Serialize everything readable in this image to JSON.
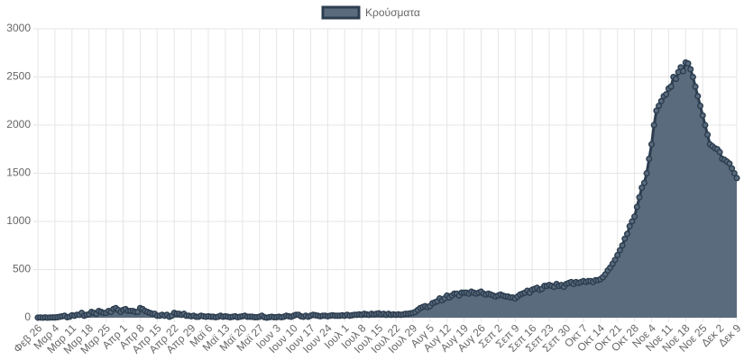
{
  "chart_data": {
    "type": "line",
    "series": [
      {
        "name": "Κρούσματα",
        "color": "#2c3e50",
        "fill_color": "#5b6b7e",
        "values": [
          1,
          2,
          0,
          3,
          0,
          2,
          3,
          3,
          5,
          10,
          15,
          20,
          5,
          10,
          25,
          20,
          30,
          30,
          50,
          20,
          30,
          35,
          60,
          50,
          40,
          70,
          60,
          50,
          50,
          70,
          60,
          90,
          100,
          80,
          60,
          80,
          90,
          70,
          70,
          70,
          60,
          60,
          100,
          90,
          70,
          60,
          50,
          40,
          40,
          20,
          20,
          30,
          20,
          30,
          10,
          20,
          50,
          40,
          40,
          30,
          40,
          20,
          20,
          15,
          20,
          10,
          10,
          20,
          15,
          10,
          15,
          10,
          10,
          5,
          10,
          20,
          10,
          15,
          10,
          5,
          10,
          15,
          5,
          10,
          15,
          20,
          10,
          10,
          10,
          5,
          5,
          10,
          20,
          5,
          0,
          5,
          10,
          5,
          5,
          10,
          5,
          10,
          20,
          15,
          10,
          20,
          30,
          30,
          15,
          10,
          20,
          10,
          20,
          30,
          25,
          20,
          15,
          20,
          20,
          15,
          20,
          25,
          20,
          20,
          20,
          25,
          20,
          30,
          20,
          25,
          30,
          30,
          35,
          30,
          40,
          35,
          30,
          40,
          35,
          40,
          45,
          35,
          40,
          30,
          40,
          30,
          35,
          30,
          35,
          30,
          35,
          40,
          40,
          45,
          50,
          60,
          80,
          100,
          110,
          120,
          110,
          120,
          150,
          160,
          170,
          200,
          180,
          200,
          230,
          210,
          230,
          250,
          250,
          230,
          260,
          260,
          260,
          250,
          270,
          260,
          250,
          260,
          270,
          250,
          240,
          250,
          240,
          230,
          220,
          230,
          240,
          230,
          220,
          220,
          210,
          210,
          200,
          220,
          240,
          250,
          260,
          280,
          260,
          290,
          300,
          310,
          290,
          300,
          330,
          330,
          340,
          330,
          320,
          350,
          330,
          340,
          320,
          350,
          360,
          370,
          350,
          370,
          360,
          370,
          380,
          370,
          380,
          380,
          370,
          390,
          390,
          400,
          420,
          450,
          490,
          520,
          560,
          600,
          650,
          700,
          750,
          820,
          870,
          950,
          1000,
          1050,
          1150,
          1250,
          1350,
          1400,
          1500,
          1650,
          1800,
          2000,
          2150,
          2200,
          2250,
          2300,
          2320,
          2380,
          2400,
          2500,
          2480,
          2550,
          2600,
          2560,
          2650,
          2640,
          2580,
          2500,
          2400,
          2300,
          2200,
          2100,
          2000,
          1900,
          1800,
          1780,
          1760,
          1750,
          1720,
          1650,
          1640,
          1620,
          1600,
          1550,
          1500,
          1450
        ]
      }
    ],
    "categories": [
      "Φεβ 26",
      null,
      null,
      null,
      null,
      null,
      null,
      "Μαρ 4",
      null,
      null,
      null,
      null,
      null,
      null,
      "Μαρ 11",
      null,
      null,
      null,
      null,
      null,
      null,
      "Μαρ 18",
      null,
      null,
      null,
      null,
      null,
      null,
      "Μαρ 25",
      null,
      null,
      null,
      null,
      null,
      null,
      "Απρ 1",
      null,
      null,
      null,
      null,
      null,
      null,
      "Απρ 8",
      null,
      null,
      null,
      null,
      null,
      null,
      "Απρ 15",
      null,
      null,
      null,
      null,
      null,
      null,
      "Απρ 22",
      null,
      null,
      null,
      null,
      null,
      null,
      "Απρ 29",
      null,
      null,
      null,
      null,
      null,
      null,
      "Μαϊ 6",
      null,
      null,
      null,
      null,
      null,
      null,
      "Μαϊ 13",
      null,
      null,
      null,
      null,
      null,
      null,
      "Μαϊ 20",
      null,
      null,
      null,
      null,
      null,
      null,
      "Μαϊ 27",
      null,
      null,
      null,
      null,
      null,
      null,
      "Ιουν 3",
      null,
      null,
      null,
      null,
      null,
      null,
      "Ιουν 10",
      null,
      null,
      null,
      null,
      null,
      null,
      "Ιουν 17",
      null,
      null,
      null,
      null,
      null,
      null,
      "Ιουν 24",
      null,
      null,
      null,
      null,
      null,
      null,
      "Ιουλ 1",
      null,
      null,
      null,
      null,
      null,
      null,
      "Ιουλ 8",
      null,
      null,
      null,
      null,
      null,
      null,
      "Ιουλ 15",
      null,
      null,
      null,
      null,
      null,
      null,
      "Ιουλ 22",
      null,
      null,
      null,
      null,
      null,
      null,
      "Ιουλ 29",
      null,
      null,
      null,
      null,
      null,
      null,
      "Αυγ 5",
      null,
      null,
      null,
      null,
      null,
      null,
      "Αυγ 12",
      null,
      null,
      null,
      null,
      null,
      null,
      "Αυγ 19",
      null,
      null,
      null,
      null,
      null,
      null,
      "Αυγ 26",
      null,
      null,
      null,
      null,
      null,
      null,
      "Σεπ 2",
      null,
      null,
      null,
      null,
      null,
      null,
      "Σεπ 9",
      null,
      null,
      null,
      null,
      null,
      null,
      "Σεπ 16",
      null,
      null,
      null,
      null,
      null,
      null,
      "Σεπ 23",
      null,
      null,
      null,
      null,
      null,
      null,
      "Σεπ 30",
      null,
      null,
      null,
      null,
      null,
      null,
      "Οκτ 7",
      null,
      null,
      null,
      null,
      null,
      null,
      "Οκτ 14",
      null,
      null,
      null,
      null,
      null,
      null,
      "Οκτ 21",
      null,
      null,
      null,
      null,
      null,
      null,
      "Οκτ 28",
      null,
      null,
      null,
      null,
      null,
      null,
      "Νοε 4",
      null,
      null,
      null,
      null,
      null,
      null,
      "Νοε 11",
      null,
      null,
      null,
      null,
      null,
      null,
      "Νοε 18",
      null,
      null,
      null,
      null,
      null,
      null,
      "Νοε 25",
      null,
      null,
      null,
      null,
      null,
      null,
      "Δεκ 2",
      null,
      null,
      null,
      null,
      null,
      null,
      "Δεκ 9"
    ],
    "ylim": [
      0,
      3000
    ],
    "yticks": [
      0,
      500,
      1000,
      1500,
      2000,
      2500,
      3000
    ],
    "grid": true,
    "legend": "top"
  }
}
